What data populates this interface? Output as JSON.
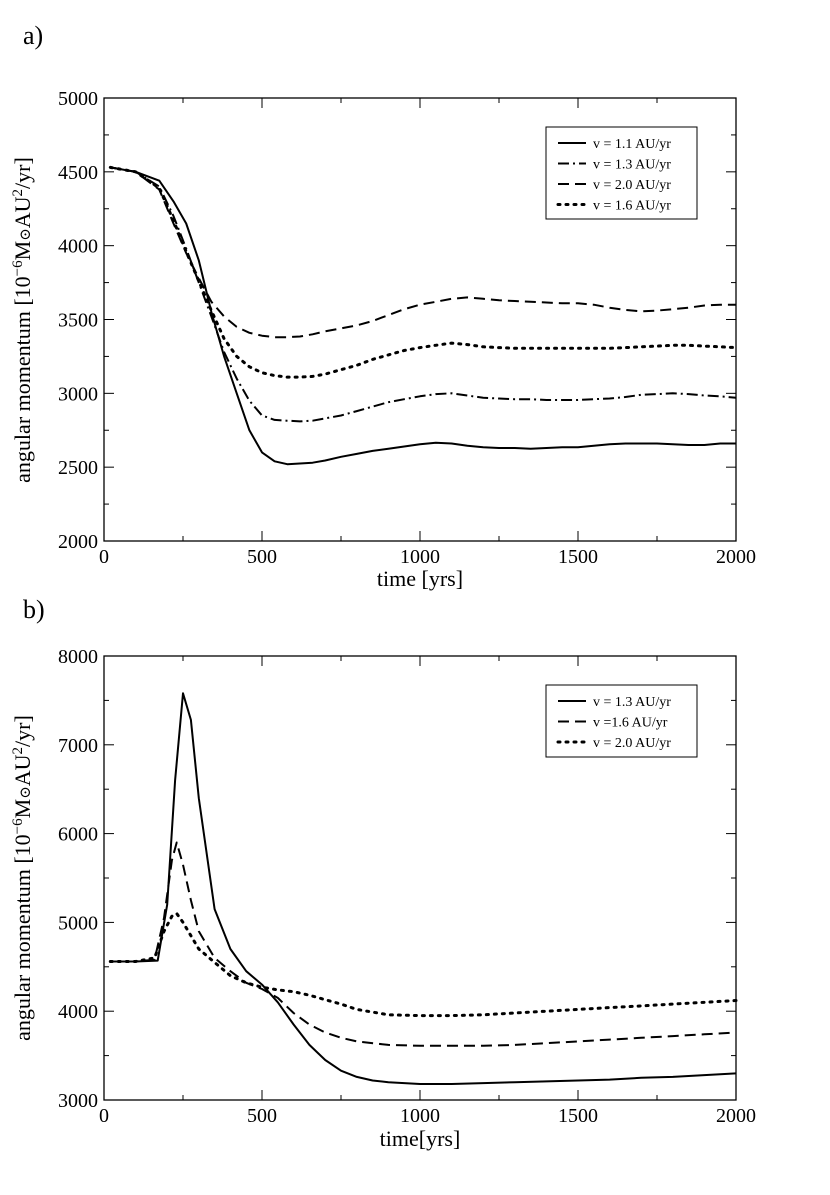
{
  "chart_data": [
    {
      "panel_label": "a)",
      "type": "line",
      "xlabel": "time [yrs]",
      "ylabel": "angular momentum [10^-6 M⊙AU^2/yr]",
      "xlim": [
        0,
        2000
      ],
      "ylim": [
        2000,
        5000
      ],
      "xticks": [
        0,
        500,
        1000,
        1500,
        2000
      ],
      "yticks": [
        2000,
        2500,
        3000,
        3500,
        4000,
        4500,
        5000
      ],
      "legend_position": "top-right",
      "series": [
        {
          "name": "v = 1.1 AU/yr",
          "style": "solid",
          "x": [
            20,
            100,
            175,
            220,
            260,
            300,
            340,
            380,
            420,
            460,
            500,
            540,
            580,
            620,
            660,
            700,
            750,
            800,
            850,
            900,
            950,
            1000,
            1050,
            1100,
            1150,
            1200,
            1250,
            1300,
            1350,
            1400,
            1450,
            1500,
            1550,
            1600,
            1650,
            1700,
            1750,
            1800,
            1850,
            1900,
            1950,
            2000
          ],
          "y": [
            4530,
            4500,
            4440,
            4300,
            4150,
            3900,
            3550,
            3250,
            3000,
            2750,
            2600,
            2540,
            2520,
            2525,
            2530,
            2545,
            2570,
            2590,
            2610,
            2625,
            2640,
            2655,
            2665,
            2660,
            2645,
            2635,
            2630,
            2630,
            2625,
            2630,
            2635,
            2635,
            2645,
            2655,
            2660,
            2660,
            2660,
            2655,
            2650,
            2650,
            2660,
            2660
          ]
        },
        {
          "name": "v = 1.3 AU/yr",
          "style": "dashdot",
          "x": [
            20,
            100,
            175,
            220,
            260,
            300,
            340,
            380,
            420,
            460,
            500,
            540,
            580,
            620,
            660,
            700,
            750,
            800,
            850,
            900,
            950,
            1000,
            1050,
            1100,
            1150,
            1200,
            1250,
            1300,
            1350,
            1400,
            1450,
            1500,
            1550,
            1600,
            1650,
            1700,
            1750,
            1800,
            1850,
            1900,
            1950,
            2000
          ],
          "y": [
            4530,
            4500,
            4400,
            4200,
            3980,
            3750,
            3520,
            3280,
            3100,
            2950,
            2850,
            2820,
            2815,
            2810,
            2815,
            2830,
            2850,
            2880,
            2910,
            2940,
            2960,
            2980,
            2995,
            3000,
            2985,
            2970,
            2965,
            2960,
            2960,
            2955,
            2955,
            2955,
            2960,
            2965,
            2975,
            2990,
            2995,
            3000,
            2995,
            2985,
            2980,
            2970
          ]
        },
        {
          "name": "v = 2.0 AU/yr",
          "style": "dashed",
          "x": [
            20,
            100,
            175,
            220,
            260,
            300,
            340,
            380,
            420,
            460,
            500,
            540,
            580,
            620,
            660,
            700,
            750,
            800,
            850,
            900,
            950,
            1000,
            1050,
            1100,
            1150,
            1200,
            1250,
            1300,
            1350,
            1400,
            1450,
            1500,
            1550,
            1600,
            1650,
            1700,
            1750,
            1800,
            1850,
            1900,
            1950,
            2000
          ],
          "y": [
            4530,
            4500,
            4380,
            4150,
            3950,
            3780,
            3620,
            3520,
            3450,
            3410,
            3390,
            3380,
            3380,
            3385,
            3400,
            3420,
            3440,
            3460,
            3490,
            3530,
            3570,
            3600,
            3620,
            3640,
            3650,
            3640,
            3630,
            3625,
            3620,
            3615,
            3610,
            3610,
            3600,
            3580,
            3565,
            3555,
            3560,
            3570,
            3580,
            3595,
            3600,
            3600
          ]
        },
        {
          "name": "v = 1.6 AU/yr",
          "style": "dotted",
          "x": [
            20,
            100,
            175,
            220,
            260,
            300,
            340,
            380,
            420,
            460,
            500,
            540,
            580,
            620,
            660,
            700,
            750,
            800,
            850,
            900,
            950,
            1000,
            1050,
            1100,
            1150,
            1200,
            1250,
            1300,
            1350,
            1400,
            1450,
            1500,
            1550,
            1600,
            1650,
            1700,
            1750,
            1800,
            1850,
            1900,
            1950,
            2000
          ],
          "y": [
            4530,
            4500,
            4390,
            4170,
            3960,
            3760,
            3560,
            3370,
            3250,
            3180,
            3140,
            3120,
            3110,
            3110,
            3115,
            3130,
            3160,
            3190,
            3230,
            3260,
            3290,
            3310,
            3325,
            3340,
            3330,
            3315,
            3310,
            3305,
            3305,
            3305,
            3305,
            3305,
            3305,
            3305,
            3310,
            3315,
            3320,
            3325,
            3325,
            3320,
            3315,
            3310
          ]
        }
      ]
    },
    {
      "panel_label": "b)",
      "type": "line",
      "xlabel": "time[yrs]",
      "ylabel": "angular momentum [10^-6 M⊙AU^2/yr]",
      "xlim": [
        0,
        2000
      ],
      "ylim": [
        3000,
        8000
      ],
      "xticks": [
        0,
        500,
        1000,
        1500,
        2000
      ],
      "yticks": [
        3000,
        4000,
        5000,
        6000,
        7000,
        8000
      ],
      "legend_position": "top-right",
      "series": [
        {
          "name": "v = 1.3 AU/yr",
          "style": "solid",
          "x": [
            20,
            100,
            170,
            200,
            225,
            250,
            275,
            300,
            350,
            400,
            450,
            500,
            550,
            600,
            650,
            700,
            750,
            800,
            850,
            900,
            1000,
            1100,
            1200,
            1300,
            1400,
            1500,
            1600,
            1700,
            1800,
            1900,
            2000
          ],
          "y": [
            4560,
            4560,
            4570,
            5200,
            6600,
            7580,
            7280,
            6400,
            5150,
            4700,
            4450,
            4300,
            4100,
            3850,
            3620,
            3450,
            3330,
            3260,
            3220,
            3200,
            3180,
            3180,
            3190,
            3200,
            3210,
            3220,
            3230,
            3250,
            3260,
            3280,
            3300
          ]
        },
        {
          "name": "v =1.6 AU/yr",
          "style": "dashed",
          "x": [
            20,
            100,
            160,
            190,
            215,
            230,
            250,
            275,
            300,
            350,
            400,
            450,
            500,
            550,
            600,
            650,
            700,
            750,
            800,
            900,
            1000,
            1100,
            1200,
            1300,
            1400,
            1500,
            1600,
            1700,
            1800,
            1900,
            2000
          ],
          "y": [
            4560,
            4560,
            4580,
            5050,
            5700,
            5900,
            5650,
            5250,
            4900,
            4600,
            4450,
            4320,
            4250,
            4150,
            3980,
            3850,
            3760,
            3700,
            3660,
            3620,
            3610,
            3610,
            3610,
            3620,
            3640,
            3660,
            3680,
            3700,
            3720,
            3740,
            3760
          ]
        },
        {
          "name": "v = 2.0 AU/yr",
          "style": "dotted",
          "x": [
            20,
            100,
            160,
            190,
            215,
            230,
            250,
            275,
            300,
            350,
            400,
            450,
            500,
            550,
            600,
            650,
            700,
            750,
            800,
            900,
            1000,
            1100,
            1200,
            1300,
            1400,
            1500,
            1600,
            1700,
            1800,
            1900,
            2000
          ],
          "y": [
            4560,
            4560,
            4600,
            4900,
            5070,
            5100,
            5000,
            4850,
            4700,
            4550,
            4400,
            4320,
            4270,
            4240,
            4220,
            4180,
            4130,
            4080,
            4020,
            3960,
            3950,
            3950,
            3960,
            3980,
            4000,
            4020,
            4040,
            4060,
            4080,
            4100,
            4120
          ]
        }
      ]
    }
  ]
}
